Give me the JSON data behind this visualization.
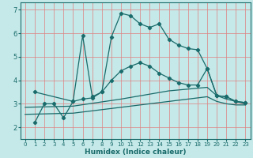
{
  "xlabel": "Humidex (Indice chaleur)",
  "xlim": [
    -0.5,
    23.5
  ],
  "ylim": [
    1.5,
    7.3
  ],
  "yticks": [
    2,
    3,
    4,
    5,
    6,
    7
  ],
  "xticks": [
    0,
    1,
    2,
    3,
    4,
    5,
    6,
    7,
    8,
    9,
    10,
    11,
    12,
    13,
    14,
    15,
    16,
    17,
    18,
    19,
    20,
    21,
    22,
    23
  ],
  "bg_color": "#c5e8e8",
  "grid_color": "#e08080",
  "line_color": "#1a6b6b",
  "series_max": [
    [
      1,
      2.2
    ],
    [
      2,
      3.0
    ],
    [
      3,
      3.0
    ],
    [
      4,
      2.4
    ],
    [
      5,
      3.1
    ],
    [
      6,
      5.9
    ],
    [
      7,
      3.3
    ],
    [
      8,
      3.5
    ],
    [
      9,
      5.85
    ],
    [
      10,
      6.85
    ],
    [
      11,
      6.75
    ],
    [
      12,
      6.4
    ],
    [
      13,
      6.25
    ],
    [
      14,
      6.4
    ],
    [
      15,
      5.75
    ],
    [
      16,
      5.5
    ],
    [
      17,
      5.35
    ],
    [
      18,
      5.3
    ],
    [
      19,
      4.5
    ],
    [
      20,
      3.35
    ],
    [
      21,
      3.3
    ],
    [
      22,
      3.1
    ],
    [
      23,
      3.05
    ]
  ],
  "series_upper": [
    [
      1,
      3.5
    ],
    [
      5,
      3.1
    ],
    [
      6,
      3.2
    ],
    [
      7,
      3.25
    ],
    [
      8,
      3.5
    ],
    [
      9,
      4.0
    ],
    [
      10,
      4.4
    ],
    [
      11,
      4.6
    ],
    [
      12,
      4.75
    ],
    [
      13,
      4.6
    ],
    [
      14,
      4.3
    ],
    [
      15,
      4.1
    ],
    [
      16,
      3.9
    ],
    [
      17,
      3.8
    ],
    [
      18,
      3.8
    ],
    [
      19,
      4.5
    ],
    [
      20,
      3.35
    ],
    [
      21,
      3.3
    ],
    [
      22,
      3.1
    ],
    [
      23,
      3.05
    ]
  ],
  "series_mean": [
    [
      0,
      2.85
    ],
    [
      5,
      2.9
    ],
    [
      10,
      3.2
    ],
    [
      15,
      3.55
    ],
    [
      19,
      3.7
    ],
    [
      20,
      3.35
    ],
    [
      21,
      3.2
    ],
    [
      22,
      3.1
    ],
    [
      23,
      3.0
    ]
  ],
  "series_lower": [
    [
      0,
      2.55
    ],
    [
      5,
      2.6
    ],
    [
      10,
      2.85
    ],
    [
      15,
      3.1
    ],
    [
      19,
      3.3
    ],
    [
      20,
      3.1
    ],
    [
      21,
      3.0
    ],
    [
      22,
      2.95
    ],
    [
      23,
      2.95
    ]
  ]
}
